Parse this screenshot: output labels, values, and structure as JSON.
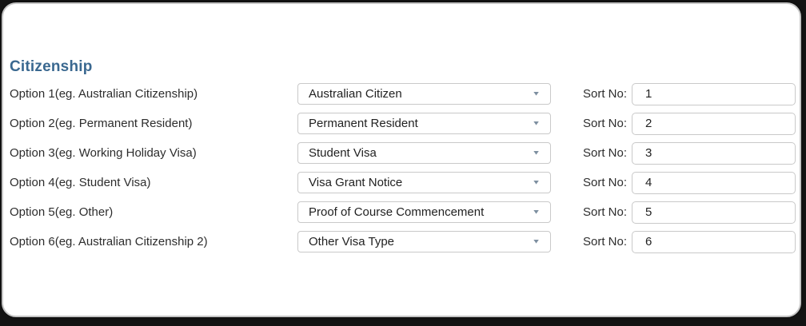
{
  "section": {
    "title": "Citizenship"
  },
  "labels": {
    "sort_no": "Sort No:"
  },
  "rows": [
    {
      "label": "Option 1(eg. Australian Citizenship)",
      "selected": "Australian Citizen",
      "sort_no": "1"
    },
    {
      "label": "Option 2(eg. Permanent Resident)",
      "selected": "Permanent Resident",
      "sort_no": "2"
    },
    {
      "label": "Option 3(eg. Working Holiday Visa)",
      "selected": "Student Visa",
      "sort_no": "3"
    },
    {
      "label": "Option 4(eg. Student Visa)",
      "selected": "Visa Grant Notice",
      "sort_no": "4"
    },
    {
      "label": "Option 5(eg. Other)",
      "selected": "Proof of Course Commencement",
      "sort_no": "5"
    },
    {
      "label": "Option 6(eg. Australian Citizenship 2)",
      "selected": "Other Visa Type",
      "sort_no": "6"
    }
  ],
  "icons": {
    "dropdown_chevron": "▼"
  },
  "colors": {
    "heading": "#3a6890",
    "page_background": "#131313",
    "card_background": "#ffffff",
    "card_border": "#c5c5c5",
    "field_border": "#c9c9c9",
    "chevron": "#7d8fa0",
    "label_text": "#2d2d2d"
  }
}
